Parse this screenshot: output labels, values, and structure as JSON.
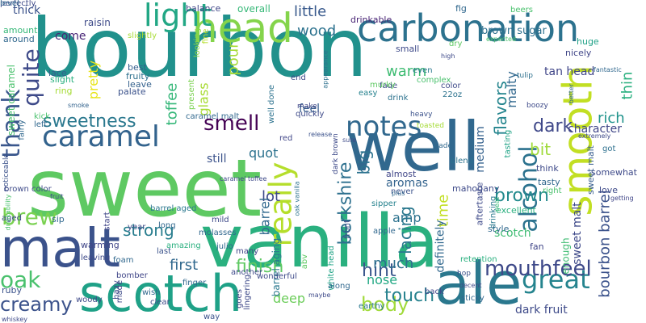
{
  "cloud": {
    "background": "#ffffff",
    "words": [
      {
        "text": "bourbon",
        "color": "#21918c"
      },
      {
        "text": "sweet",
        "color": "#5ec962"
      },
      {
        "text": "vanilla",
        "color": "#2ab07f"
      },
      {
        "text": "ale",
        "color": "#2a788e"
      },
      {
        "text": "well",
        "color": "#31688e"
      },
      {
        "text": "malt",
        "color": "#3b528b"
      },
      {
        "text": "scotch",
        "color": "#1fa187"
      },
      {
        "text": "smooth",
        "color": "#c2df23"
      },
      {
        "text": "head",
        "color": "#84d44b"
      },
      {
        "text": "carbonation",
        "color": "#2c728e"
      },
      {
        "text": "caramel",
        "color": "#33638d"
      },
      {
        "text": "really",
        "color": "#b5de2b"
      },
      {
        "text": "light",
        "color": "#22a785"
      },
      {
        "text": "notes",
        "color": "#31688e"
      },
      {
        "text": "thank",
        "color": "#39568c"
      },
      {
        "text": "quite",
        "color": "#3e4a89"
      },
      {
        "text": "great",
        "color": "#25848e"
      },
      {
        "text": "alcohol",
        "color": "#2c728e"
      },
      {
        "text": "oak",
        "color": "#4ac16d"
      },
      {
        "text": "brew",
        "color": "#7ad151"
      },
      {
        "text": "creamy",
        "color": "#3b528b"
      },
      {
        "text": "mouthfeel",
        "color": "#3e4989"
      },
      {
        "text": "smell",
        "color": "#440154"
      },
      {
        "text": "body",
        "color": "#a0da39"
      },
      {
        "text": "sweetness",
        "color": "#2a788e"
      },
      {
        "text": "berkshire",
        "color": "#2d708e"
      },
      {
        "text": "brown",
        "color": "#238a8d"
      },
      {
        "text": "bit",
        "color": "#9fda3a"
      },
      {
        "text": "dark",
        "color": "#3f4889"
      },
      {
        "text": "rich",
        "color": "#20938c"
      },
      {
        "text": "strong",
        "color": "#287d8e"
      },
      {
        "text": "finish",
        "color": "#5ec962"
      },
      {
        "text": "hint",
        "color": "#39568c"
      },
      {
        "text": "touch",
        "color": "#26828e"
      },
      {
        "text": "lacing",
        "color": "#2a788e"
      },
      {
        "text": "much",
        "color": "#2d708e"
      },
      {
        "text": "bourbon barrel",
        "color": "#3b528b"
      },
      {
        "text": "big",
        "color": "#2c728e"
      },
      {
        "text": "flavors",
        "color": "#25858e"
      },
      {
        "text": "warm",
        "color": "#3fbc73"
      },
      {
        "text": "wood",
        "color": "#2c728e"
      },
      {
        "text": "time",
        "color": "#c2df23"
      },
      {
        "text": "pour",
        "color": "#a5db36"
      },
      {
        "text": "nose",
        "color": "#22a884"
      },
      {
        "text": "deep",
        "color": "#6ccd5a"
      },
      {
        "text": "lot",
        "color": "#3e4989"
      },
      {
        "text": "first",
        "color": "#31688e"
      },
      {
        "text": "quot",
        "color": "#2c728e"
      },
      {
        "text": "amp",
        "color": "#2c728e"
      },
      {
        "text": "barrel",
        "color": "#31688e"
      },
      {
        "text": "little",
        "color": "#38598c"
      },
      {
        "text": "toffee",
        "color": "#35b779"
      },
      {
        "text": "glass",
        "color": "#a8db34"
      },
      {
        "text": "pretty",
        "color": "#e7e419"
      },
      {
        "text": "malty",
        "color": "#31688e"
      },
      {
        "text": "thin",
        "color": "#2ab07f"
      },
      {
        "text": "come",
        "color": "#482576"
      },
      {
        "text": "character",
        "color": "#404688"
      },
      {
        "text": "feel",
        "color": "#365d8d"
      },
      {
        "text": "sweet malt",
        "color": "#3e4989"
      },
      {
        "text": "aromas",
        "color": "#33638d"
      },
      {
        "text": "medium",
        "color": "#34618d"
      },
      {
        "text": "scotch",
        "color": "#3fbc73"
      },
      {
        "text": "definitely",
        "color": "#31688e"
      },
      {
        "text": "barrel aging",
        "color": "#2a788e"
      },
      {
        "text": "still",
        "color": "#3b528b"
      },
      {
        "text": "dark fruit",
        "color": "#3e4a89"
      },
      {
        "text": "thick",
        "color": "#3b528b"
      },
      {
        "text": "tan head",
        "color": "#404688"
      },
      {
        "text": "brown sugar",
        "color": "#2d708e"
      },
      {
        "text": "raisin",
        "color": "#3e4a89"
      },
      {
        "text": "overall",
        "color": "#37b878"
      },
      {
        "text": "balance",
        "color": "#404688"
      },
      {
        "text": "fig",
        "color": "#31688e"
      },
      {
        "text": "beers",
        "color": "#4ac16d"
      },
      {
        "text": "drinkable",
        "color": "#482475"
      },
      {
        "text": "sweet caramel",
        "color": "#4ac16d"
      },
      {
        "text": "amount",
        "color": "#37b878"
      },
      {
        "text": "around",
        "color": "#31688e"
      },
      {
        "text": "lace",
        "color": "#34618d"
      },
      {
        "text": "slight",
        "color": "#2ab07f"
      },
      {
        "text": "ring",
        "color": "#a5db36"
      },
      {
        "text": "best",
        "color": "#355e8d"
      },
      {
        "text": "fruity",
        "color": "#2d708e"
      },
      {
        "text": "leave",
        "color": "#34618d"
      },
      {
        "text": "palate",
        "color": "#3b528b"
      },
      {
        "text": "slightly",
        "color": "#a8db34"
      },
      {
        "text": "present",
        "color": "#7ad151"
      },
      {
        "text": "looking",
        "color": "#8bd646"
      },
      {
        "text": "fine",
        "color": "#b5de2b"
      },
      {
        "text": "end",
        "color": "#3e4a89"
      },
      {
        "text": "well done",
        "color": "#2c728e"
      },
      {
        "text": "fade",
        "color": "#3e4a89"
      },
      {
        "text": "drink",
        "color": "#2c728e"
      },
      {
        "text": "murky",
        "color": "#5ec962"
      },
      {
        "text": "easy",
        "color": "#26828e"
      },
      {
        "text": "even",
        "color": "#2a788e"
      },
      {
        "text": "complex",
        "color": "#4ac16d"
      },
      {
        "text": "color",
        "color": "#3e4a89"
      },
      {
        "text": "22oz",
        "color": "#2c728e"
      },
      {
        "text": "tulip",
        "color": "#2d708e"
      },
      {
        "text": "nicely",
        "color": "#404688"
      },
      {
        "text": "huge",
        "color": "#1fa187"
      },
      {
        "text": "fantastic",
        "color": "#31688e"
      },
      {
        "text": "better",
        "color": "#31688e"
      },
      {
        "text": "small",
        "color": "#3e4a89"
      },
      {
        "text": "dry",
        "color": "#5ec962"
      },
      {
        "text": "expected",
        "color": "#4ac16d"
      },
      {
        "text": "high",
        "color": "#3e4a89"
      },
      {
        "text": "appearance",
        "color": "#2d708e"
      },
      {
        "text": "smoke",
        "color": "#33638d"
      },
      {
        "text": "kick",
        "color": "#4ac16d"
      },
      {
        "text": "left",
        "color": "#31688e"
      },
      {
        "text": "noticeable",
        "color": "#3b528b"
      },
      {
        "text": "brown color",
        "color": "#3e4a89"
      },
      {
        "text": "fairly",
        "color": "#31688e"
      },
      {
        "text": "make",
        "color": "#404688"
      },
      {
        "text": "quickly",
        "color": "#3e4a89"
      },
      {
        "text": "red",
        "color": "#404688"
      },
      {
        "text": "release",
        "color": "#3b528b"
      },
      {
        "text": "dark brown",
        "color": "#3e4a89"
      },
      {
        "text": "toasted",
        "color": "#a5db36"
      },
      {
        "text": "heavy",
        "color": "#3b528b"
      },
      {
        "text": "boozy",
        "color": "#3e4a89"
      },
      {
        "text": "trade",
        "color": "#31688e"
      },
      {
        "text": "tasting",
        "color": "#20a386"
      },
      {
        "text": "extremely",
        "color": "#3e4a89"
      },
      {
        "text": "got",
        "color": "#2d708e"
      },
      {
        "text": "think",
        "color": "#3e4989"
      },
      {
        "text": "right",
        "color": "#4ac16d"
      },
      {
        "text": "tasty",
        "color": "#31688e"
      },
      {
        "text": "somewhat",
        "color": "#3e4a89"
      },
      {
        "text": "love",
        "color": "#3e4a89"
      },
      {
        "text": "sweet malt",
        "color": "#365d8d"
      },
      {
        "text": "excellent",
        "color": "#2ab07f"
      },
      {
        "text": "style",
        "color": "#31688e"
      },
      {
        "text": "fan",
        "color": "#404688"
      },
      {
        "text": "enough",
        "color": "#3fbc73"
      },
      {
        "text": "almost",
        "color": "#404688"
      },
      {
        "text": "blend",
        "color": "#2c728e"
      },
      {
        "text": "mahogany",
        "color": "#3e4a89"
      },
      {
        "text": "sipper",
        "color": "#26828e"
      },
      {
        "text": "never",
        "color": "#3b528b"
      },
      {
        "text": "plus",
        "color": "#31688e"
      },
      {
        "text": "aftertaste",
        "color": "#3e4a89"
      },
      {
        "text": "drinking",
        "color": "#2a788e"
      },
      {
        "text": "peat",
        "color": "#37b878"
      },
      {
        "text": "getting",
        "color": "#404688"
      },
      {
        "text": "apple",
        "color": "#31688e"
      },
      {
        "text": "front",
        "color": "#3e4a89"
      },
      {
        "text": "white head",
        "color": "#20a386"
      },
      {
        "text": "retention",
        "color": "#2ab07f"
      },
      {
        "text": "hop",
        "color": "#3b528b"
      },
      {
        "text": "decent",
        "color": "#3e4a89"
      },
      {
        "text": "back",
        "color": "#404688"
      },
      {
        "text": "sticky",
        "color": "#31688e"
      },
      {
        "text": "earthy",
        "color": "#2a788e"
      },
      {
        "text": "along",
        "color": "#31688e"
      },
      {
        "text": "abv",
        "color": "#5ec962"
      },
      {
        "text": "maybe",
        "color": "#3e4a89"
      },
      {
        "text": "lingering",
        "color": "#3e4a89"
      },
      {
        "text": "goes",
        "color": "#404688"
      },
      {
        "text": "way",
        "color": "#3b528b"
      },
      {
        "text": "wish",
        "color": "#31688e"
      },
      {
        "text": "clear",
        "color": "#3e4a89"
      },
      {
        "text": "finger",
        "color": "#31688e"
      },
      {
        "text": "made",
        "color": "#3e4a89"
      },
      {
        "text": "last",
        "color": "#3b528b"
      },
      {
        "text": "julio",
        "color": "#31688e"
      },
      {
        "text": "many",
        "color": "#404688"
      },
      {
        "text": "another",
        "color": "#3e4a89"
      },
      {
        "text": "wonderful",
        "color": "#3e4a89"
      },
      {
        "text": "molasses",
        "color": "#31688e"
      },
      {
        "text": "barrel aged",
        "color": "#2a788e"
      },
      {
        "text": "mild",
        "color": "#3e4a89"
      },
      {
        "text": "amazing",
        "color": "#2ab07f"
      },
      {
        "text": "long",
        "color": "#31688e"
      },
      {
        "text": "year",
        "color": "#3e4a89"
      },
      {
        "text": "start",
        "color": "#404688"
      },
      {
        "text": "sip",
        "color": "#31688e"
      },
      {
        "text": "aged",
        "color": "#3e4a89"
      },
      {
        "text": "drinkability",
        "color": "#4ac16d"
      },
      {
        "text": "fruit",
        "color": "#3e4a89"
      },
      {
        "text": "warming",
        "color": "#404688"
      },
      {
        "text": "leaving",
        "color": "#3e4a89"
      },
      {
        "text": "foam",
        "color": "#31688e"
      },
      {
        "text": "hazy",
        "color": "#3e4a89"
      },
      {
        "text": "ruby",
        "color": "#3b528b"
      },
      {
        "text": "woody",
        "color": "#3e4a89"
      },
      {
        "text": "bomber",
        "color": "#404688"
      },
      {
        "text": "whiskey",
        "color": "#3e4a89"
      },
      {
        "text": "caramel malt",
        "color": "#31688e"
      },
      {
        "text": "caramel toffee",
        "color": "#3e4a89"
      },
      {
        "text": "oak vanilla",
        "color": "#2c728e"
      },
      {
        "text": "sure",
        "color": "#3e4a89"
      },
      {
        "text": "perfectly",
        "color": "#3e4a89"
      },
      {
        "text": "level",
        "color": "#31688e"
      }
    ]
  }
}
